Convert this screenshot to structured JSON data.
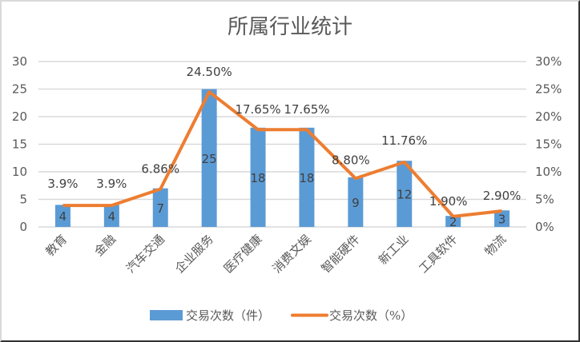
{
  "chart_data": {
    "type": "bar+line",
    "title": "所属行业统计",
    "categories": [
      "教育",
      "金融",
      "汽车交通",
      "企业服务",
      "医疗健康",
      "消费文娱",
      "智能硬件",
      "新工业",
      "工具软件",
      "物流"
    ],
    "series": [
      {
        "name": "交易次数（件）",
        "type": "bar",
        "axis": "left",
        "color": "#5b9bd5",
        "values": [
          4,
          4,
          7,
          25,
          18,
          18,
          9,
          12,
          2,
          3
        ],
        "labels": [
          "4",
          "4",
          "7",
          "25",
          "18",
          "18",
          "9",
          "12",
          "2",
          "3"
        ]
      },
      {
        "name": "交易次数（%）",
        "type": "line",
        "axis": "right",
        "color": "#ed7d31",
        "values": [
          3.9,
          3.9,
          6.86,
          24.5,
          17.65,
          17.65,
          8.8,
          11.76,
          1.9,
          2.9
        ],
        "labels": [
          "3.9%",
          "3.9%",
          "6.86%",
          "24.50%",
          "17.65%",
          "17.65%",
          "8.80%",
          "11.76%",
          "1.90%",
          "2.90%"
        ]
      }
    ],
    "y_left": {
      "ticks": [
        "0",
        "5",
        "10",
        "15",
        "20",
        "25",
        "30"
      ],
      "ylim": [
        0,
        30
      ]
    },
    "y_right": {
      "ticks": [
        "0%",
        "5%",
        "10%",
        "15%",
        "20%",
        "25%",
        "30%"
      ],
      "ylim": [
        0,
        30
      ]
    },
    "grid": true,
    "legend_position": "bottom"
  }
}
